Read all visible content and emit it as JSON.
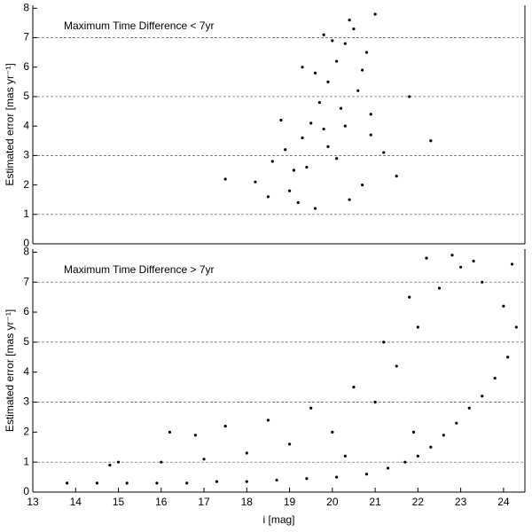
{
  "chart_data": [
    {
      "type": "scatter",
      "annotation": "Maximum Time Difference < 7yr",
      "ylabel": "Estimated error  [mas yr⁻¹]",
      "xlim": [
        13,
        24.5
      ],
      "ylim": [
        0,
        8.1
      ],
      "yticks": [
        0,
        1,
        2,
        3,
        4,
        5,
        6,
        7,
        8
      ],
      "grid_yticks": [
        1,
        3,
        5,
        7
      ],
      "color": "#000000",
      "x": [
        18.2,
        18.6,
        18.9,
        19.1,
        19.3,
        19.5,
        19.7,
        19.9,
        20.1,
        20.3,
        20.5,
        20.7,
        20.9,
        21.2,
        21.5,
        19.0,
        19.4,
        19.8,
        20.2,
        20.6,
        18.8,
        19.6,
        20.0,
        20.4,
        20.8,
        19.2,
        19.9,
        20.3,
        21.0,
        21.8,
        17.5,
        22.3,
        19.3,
        20.1,
        20.7,
        19.6,
        18.5,
        20.9,
        19.8,
        20.4
      ],
      "values": [
        2.1,
        2.8,
        3.2,
        2.5,
        3.6,
        4.1,
        4.8,
        5.5,
        6.2,
        6.8,
        7.3,
        5.9,
        4.4,
        3.1,
        2.3,
        1.8,
        2.6,
        3.9,
        4.6,
        5.2,
        4.2,
        5.8,
        6.9,
        7.6,
        6.5,
        1.4,
        3.3,
        4.0,
        7.8,
        5.0,
        2.2,
        3.5,
        6.0,
        2.9,
        2.0,
        1.2,
        1.6,
        3.7,
        7.1,
        1.5
      ]
    },
    {
      "type": "scatter",
      "annotation": "Maximum Time Difference > 7yr",
      "ylabel": "Estimated error  [mas yr⁻¹]",
      "xlabel": "i [mag]",
      "xlim": [
        13,
        24.5
      ],
      "xticks": [
        13,
        14,
        15,
        16,
        17,
        18,
        19,
        20,
        21,
        22,
        23,
        24
      ],
      "ylim": [
        0,
        8.1
      ],
      "yticks": [
        0,
        1,
        2,
        3,
        4,
        5,
        6,
        7,
        8
      ],
      "grid_yticks": [
        1,
        3,
        5,
        7
      ],
      "color": "#000000",
      "x": [
        13.8,
        14.5,
        15.2,
        15.9,
        16.6,
        17.3,
        18.0,
        18.7,
        19.4,
        20.1,
        20.8,
        21.3,
        21.7,
        22.0,
        22.3,
        22.6,
        22.9,
        23.2,
        23.5,
        23.8,
        24.1,
        24.3,
        15.0,
        16.0,
        17.0,
        18.0,
        19.0,
        20.0,
        21.0,
        21.5,
        22.0,
        22.5,
        23.0,
        23.5,
        24.0,
        16.2,
        17.5,
        18.5,
        19.5,
        20.5,
        21.2,
        21.8,
        22.2,
        22.8,
        23.3,
        24.2,
        14.8,
        16.8,
        20.3,
        21.9
      ],
      "values": [
        0.3,
        0.3,
        0.3,
        0.3,
        0.3,
        0.35,
        0.35,
        0.4,
        0.45,
        0.5,
        0.6,
        0.8,
        1.0,
        1.2,
        1.5,
        1.9,
        2.3,
        2.8,
        3.2,
        3.8,
        4.5,
        5.5,
        1.0,
        1.0,
        1.1,
        1.3,
        1.6,
        2.0,
        3.0,
        4.2,
        5.5,
        6.8,
        7.5,
        7.0,
        6.2,
        2.0,
        2.2,
        2.4,
        2.8,
        3.5,
        5.0,
        6.5,
        7.8,
        7.9,
        7.7,
        7.6,
        0.9,
        1.9,
        1.2,
        2.0
      ]
    }
  ]
}
